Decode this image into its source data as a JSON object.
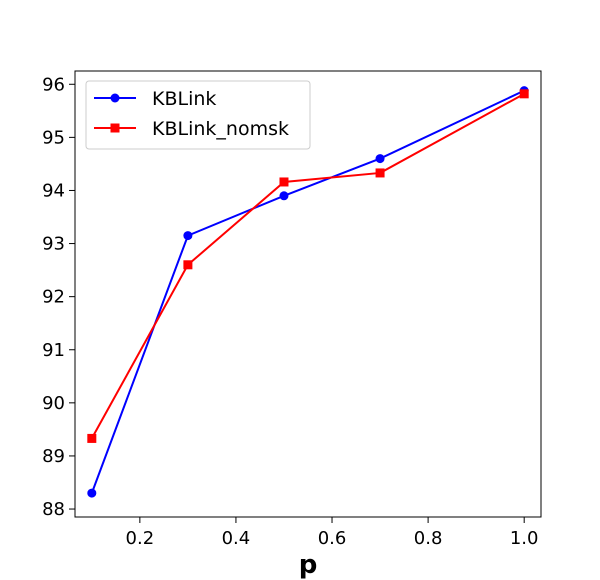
{
  "chart_data": {
    "type": "line",
    "title": "",
    "xlabel": "p",
    "ylabel": "",
    "xlim": [
      0.065,
      1.035
    ],
    "ylim": [
      87.85,
      96.25
    ],
    "xticks": [
      0.2,
      0.4,
      0.6,
      0.8,
      1.0
    ],
    "xtick_labels": [
      "0.2",
      "0.4",
      "0.6",
      "0.8",
      "1.0"
    ],
    "yticks": [
      88,
      89,
      90,
      91,
      92,
      93,
      94,
      95,
      96
    ],
    "ytick_labels": [
      "88",
      "89",
      "90",
      "91",
      "92",
      "93",
      "94",
      "95",
      "96"
    ],
    "grid": false,
    "legend_position": "top-left",
    "series": [
      {
        "name": "KBLink",
        "color": "#0000ff",
        "marker": "circle",
        "x": [
          0.1,
          0.3,
          0.5,
          0.7,
          1.0
        ],
        "y": [
          88.3,
          93.15,
          93.9,
          94.6,
          95.88
        ]
      },
      {
        "name": "KBLink_nomsk",
        "color": "#ff0000",
        "marker": "square",
        "x": [
          0.1,
          0.3,
          0.5,
          0.7,
          1.0
        ],
        "y": [
          89.33,
          92.6,
          94.16,
          94.33,
          95.82
        ]
      }
    ]
  }
}
